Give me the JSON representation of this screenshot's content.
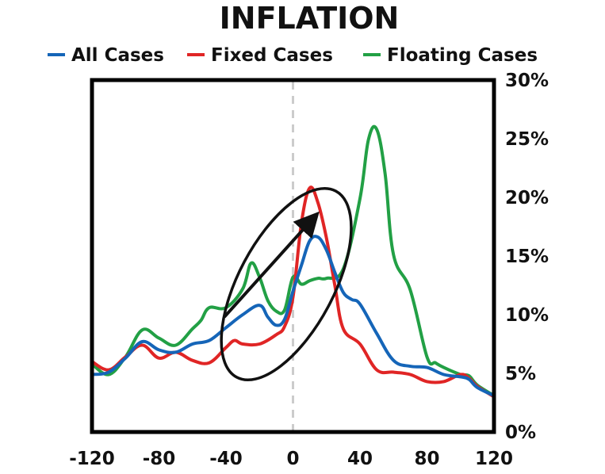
{
  "chart_data": {
    "type": "line",
    "title": "INFLATION",
    "xlabel": "",
    "ylabel": "",
    "xlim": [
      -120,
      120
    ],
    "ylim": [
      0,
      30
    ],
    "y_axis_side": "right",
    "legend_placement": "top",
    "grid": false,
    "x_ticks": [
      "-120",
      "-80",
      "-40",
      "0",
      "40",
      "80",
      "120"
    ],
    "y_ticks": [
      "0%",
      "5%",
      "10%",
      "15%",
      "20%",
      "25%",
      "30%"
    ],
    "reference_line": {
      "x": 0,
      "style": "dashed"
    },
    "series": [
      {
        "name": "All Cases",
        "color": "#1565b8",
        "x": [
          -120,
          -110,
          -100,
          -90,
          -80,
          -70,
          -60,
          -50,
          -40,
          -30,
          -20,
          -15,
          -10,
          -5,
          0,
          5,
          10,
          15,
          20,
          25,
          30,
          35,
          40,
          50,
          60,
          70,
          80,
          90,
          100,
          105,
          110,
          120
        ],
        "y": [
          4.9,
          5.1,
          6.3,
          7.7,
          7.0,
          6.8,
          7.5,
          7.8,
          8.9,
          10.0,
          10.8,
          9.8,
          9.1,
          9.6,
          12.0,
          14.2,
          16.3,
          16.6,
          15.5,
          13.6,
          11.9,
          11.3,
          10.9,
          8.4,
          6.1,
          5.6,
          5.5,
          4.9,
          4.7,
          4.5,
          3.8,
          3.1
        ]
      },
      {
        "name": "Fixed Cases",
        "color": "#e02525",
        "x": [
          -120,
          -110,
          -100,
          -90,
          -80,
          -70,
          -60,
          -50,
          -40,
          -35,
          -30,
          -20,
          -10,
          -5,
          0,
          5,
          10,
          15,
          20,
          25,
          30,
          40,
          50,
          60,
          70,
          80,
          90,
          100,
          105,
          110,
          120
        ],
        "y": [
          6.0,
          5.3,
          6.4,
          7.4,
          6.3,
          6.8,
          6.1,
          5.9,
          7.2,
          7.8,
          7.5,
          7.5,
          8.3,
          9.0,
          11.5,
          17.8,
          20.8,
          19.5,
          16.5,
          12.5,
          8.8,
          7.5,
          5.3,
          5.1,
          4.9,
          4.3,
          4.3,
          4.9,
          4.6,
          3.9,
          3.0
        ]
      },
      {
        "name": "Floating Cases",
        "color": "#22a045",
        "x": [
          -120,
          -110,
          -100,
          -90,
          -80,
          -70,
          -60,
          -55,
          -50,
          -40,
          -30,
          -25,
          -20,
          -15,
          -10,
          -5,
          0,
          5,
          10,
          15,
          20,
          30,
          40,
          45,
          50,
          55,
          60,
          70,
          80,
          85,
          90,
          100,
          105,
          110,
          120
        ],
        "y": [
          5.8,
          4.9,
          6.4,
          8.7,
          8.0,
          7.4,
          8.8,
          9.5,
          10.6,
          10.6,
          12.2,
          14.4,
          13.2,
          11.2,
          10.3,
          10.4,
          13.2,
          12.6,
          12.9,
          13.1,
          13.1,
          13.9,
          19.9,
          24.9,
          25.8,
          22.0,
          15.1,
          12.1,
          6.4,
          5.9,
          5.5,
          4.9,
          4.8,
          4.0,
          3.1
        ]
      }
    ],
    "annotations": [
      {
        "shape": "ellipse",
        "note": "circled pre-event buildup"
      },
      {
        "shape": "arrow",
        "note": "upward arrow from x≈-40 toward peak"
      }
    ]
  }
}
